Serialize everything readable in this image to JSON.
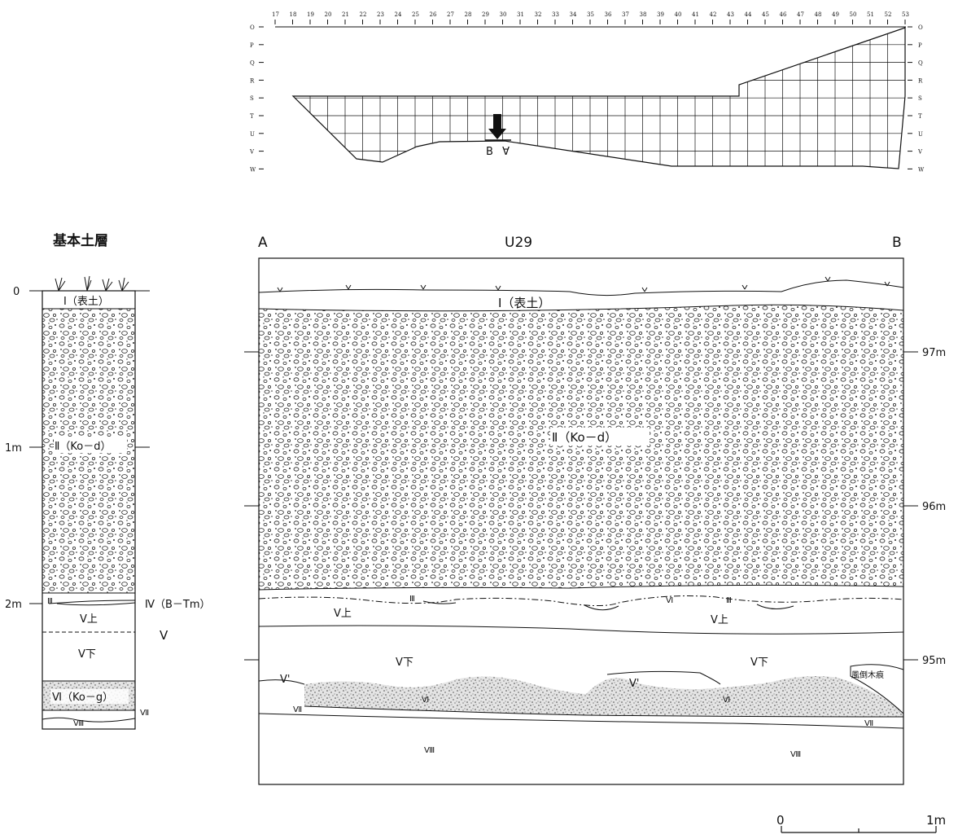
{
  "plan": {
    "x_ticks": [
      "17",
      "18",
      "19",
      "20",
      "21",
      "22",
      "23",
      "24",
      "25",
      "26",
      "27",
      "28",
      "29",
      "30",
      "31",
      "32",
      "33",
      "34",
      "35",
      "36",
      "37",
      "38",
      "39",
      "40",
      "41",
      "42",
      "43",
      "44",
      "45",
      "46",
      "47",
      "48",
      "49",
      "50",
      "51",
      "52",
      "53"
    ],
    "rows": [
      "O",
      "P",
      "Q",
      "R",
      "S",
      "T",
      "U",
      "V",
      "W"
    ],
    "marker_a": "A",
    "marker_b": "B"
  },
  "column": {
    "title": "基本土層",
    "depth_labels": [
      "0",
      "1m",
      "2m"
    ],
    "layers": {
      "I": "Ⅰ（表土）",
      "II": "Ⅱ（Ko－d）",
      "III": "Ⅲ",
      "IV": "Ⅳ（B－Tm）",
      "V_upper": "Ⅴ上",
      "V": "Ⅴ",
      "V_lower": "Ⅴ下",
      "VI": "Ⅵ（Ko－g）",
      "VII": "Ⅶ",
      "VIII": "Ⅷ"
    }
  },
  "section": {
    "title": "U29",
    "left_end": "A",
    "right_end": "B",
    "elevations": [
      "97m",
      "96m",
      "95m"
    ],
    "labels": {
      "I": "Ⅰ（表土）",
      "II": "Ⅱ（Ko－d）",
      "III": "Ⅲ",
      "V_upper": "Ⅴ上",
      "V_lower": "Ⅴ下",
      "V_prime": "Ⅴ'",
      "VI": "Ⅵ",
      "VII": "Ⅶ",
      "VIII": "Ⅷ",
      "windthrow": "風倒木痕"
    }
  },
  "scale": {
    "start": "0",
    "end": "1m"
  }
}
